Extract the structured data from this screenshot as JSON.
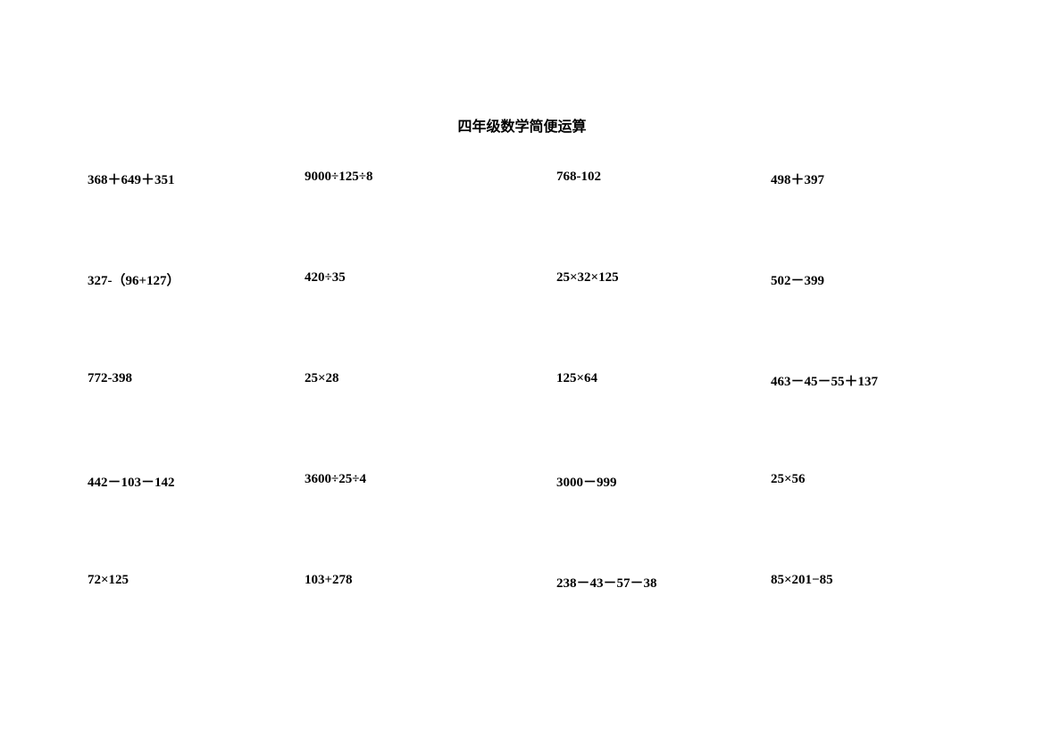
{
  "title": "四年级数学简便运算",
  "problems": {
    "row1": {
      "col1": "368＋649＋351",
      "col2": "9000÷125÷8",
      "col3": "768-102",
      "col4": "498＋397"
    },
    "row2": {
      "col1": "327-（96+127）",
      "col2": "420÷35",
      "col3": "25×32×125",
      "col4": "502－399"
    },
    "row3": {
      "col1": "772-398",
      "col2": "25×28",
      "col3": "125×64",
      "col4": "463－45－55＋137"
    },
    "row4": {
      "col1": "442－103－142",
      "col2": "3600÷25÷4",
      "col3": "3000－999",
      "col4": "25×56"
    },
    "row5": {
      "col1": "72×125",
      "col2": "103+278",
      "col3": "238－43－57－38",
      "col4": "85×201−85"
    }
  },
  "styling": {
    "background_color": "#ffffff",
    "text_color": "#000000",
    "title_fontsize": 16,
    "problem_fontsize": 15,
    "font_weight": "bold"
  }
}
